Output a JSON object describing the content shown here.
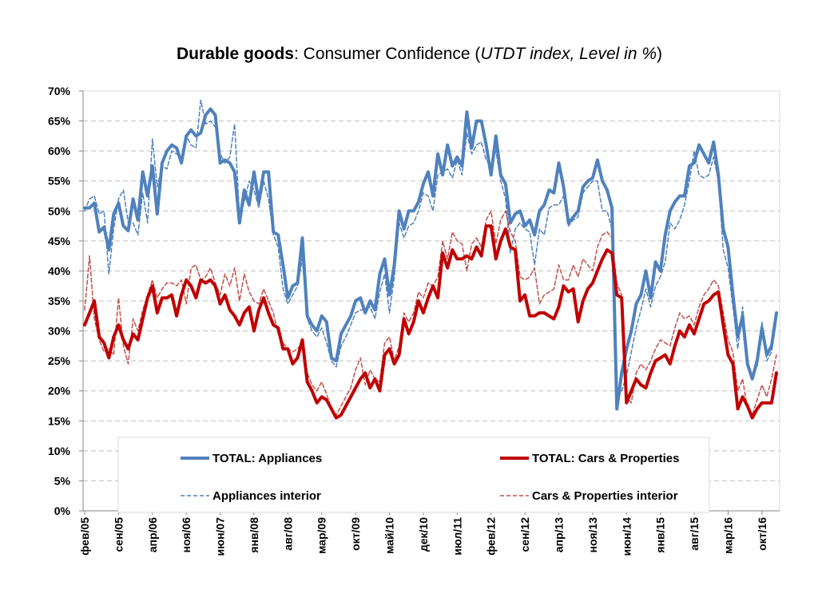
{
  "title": {
    "bold": "Durable goods",
    "sep": ": Consumer Confidence (",
    "italic": "UTDT index,  Level  in %",
    "close": ")"
  },
  "colors": {
    "appliances": "#4F81BD",
    "cars": "#C00000",
    "cars_interior": "#C0504D",
    "grid": "#BFBFBF"
  },
  "chart_data": {
    "type": "line",
    "title": "Durable goods: Consumer Confidence (UTDT index,  Level  in %)",
    "ylim": [
      0,
      70
    ],
    "yticks": [
      0,
      5,
      10,
      15,
      20,
      25,
      30,
      35,
      40,
      45,
      50,
      55,
      60,
      65,
      70
    ],
    "ytick_labels": [
      "0%",
      "5%",
      "10%",
      "15%",
      "20%",
      "25%",
      "30%",
      "35%",
      "40%",
      "45%",
      "50%",
      "55%",
      "60%",
      "65%",
      "70%"
    ],
    "x_start": "2005-02",
    "x_end": "2016-10",
    "xtick_labels": [
      "фев/05",
      "сен/05",
      "апр/06",
      "ноя/06",
      "июн/07",
      "янв/08",
      "авг/08",
      "мар/09",
      "окт/09",
      "май/10",
      "дек/10",
      "июл/11",
      "фев/12",
      "сен/12",
      "апр/13",
      "ноя/13",
      "июн/14",
      "янв/15",
      "авг/15",
      "мар/16",
      "окт/16"
    ],
    "grid": true,
    "legend_position": "bottom-inside",
    "series": [
      {
        "name": "TOTAL: Appliances",
        "style": "solid-thick",
        "values": [
          50.5,
          50.5,
          51.3,
          46.5,
          47.3,
          43.5,
          49.5,
          51.3,
          47.5,
          46.7,
          52.0,
          48.5,
          56.5,
          52.5,
          57.5,
          49.5,
          58.0,
          60.0,
          61.0,
          60.5,
          58.0,
          62.5,
          63.5,
          62.5,
          63.0,
          66.0,
          67.0,
          66.0,
          58.0,
          58.5,
          58.0,
          56.5,
          48.0,
          53.5,
          51.0,
          56.5,
          51.5,
          56.5,
          56.5,
          46.5,
          46.0,
          41.0,
          35.5,
          37.5,
          38.0,
          45.5,
          32.5,
          31.0,
          30.0,
          32.5,
          31.5,
          25.5,
          25.0,
          29.5,
          31.0,
          32.5,
          35.0,
          35.5,
          33.0,
          35.0,
          33.5,
          39.5,
          42.0,
          36.0,
          41.0,
          50.0,
          47.0,
          50.0,
          50.0,
          51.5,
          54.5,
          56.5,
          52.5,
          59.5,
          56.0,
          61.0,
          57.5,
          59.0,
          57.5,
          66.5,
          60.5,
          65.0,
          65.0,
          61.0,
          56.0,
          62.5,
          56.0,
          54.5,
          48.0,
          49.5,
          50.0,
          47.5,
          48.5,
          46.0,
          50.0,
          51.0,
          53.5,
          53.0,
          58.0,
          54.0,
          48.0,
          49.0,
          50.0,
          54.0,
          55.0,
          55.5,
          58.5,
          55.0,
          53.5,
          50.5,
          17.0,
          23.0,
          27.0,
          30.0,
          34.5,
          36.0,
          40.0,
          35.5,
          41.5,
          40.0,
          46.0,
          50.0,
          51.5,
          52.5,
          52.5,
          57.5,
          58.0,
          61.0,
          59.5,
          58.0,
          61.5,
          56.0,
          47.0,
          44.0,
          36.0,
          29.0,
          32.5,
          24.5,
          22.0,
          25.0,
          30.5,
          26.0,
          27.5,
          33.0
        ]
      },
      {
        "name": "TOTAL: Cars & Properties",
        "style": "solid-thick",
        "values": [
          31.0,
          33.0,
          35.0,
          29.0,
          28.0,
          25.5,
          29.0,
          31.0,
          28.5,
          27.0,
          29.5,
          28.5,
          32.0,
          35.5,
          37.5,
          33.0,
          35.5,
          35.5,
          36.0,
          32.5,
          36.0,
          38.5,
          37.5,
          35.5,
          38.5,
          38.0,
          38.5,
          37.5,
          34.5,
          36.0,
          33.5,
          32.5,
          31.0,
          33.0,
          34.0,
          30.0,
          33.5,
          35.5,
          33.0,
          31.0,
          30.5,
          27.0,
          27.0,
          24.5,
          25.5,
          28.5,
          21.5,
          20.0,
          18.0,
          19.0,
          18.5,
          17.0,
          15.5,
          16.0,
          17.5,
          19.0,
          20.5,
          22.0,
          23.0,
          20.5,
          22.0,
          20.0,
          26.0,
          27.0,
          24.5,
          26.0,
          32.0,
          29.5,
          31.5,
          35.0,
          33.0,
          35.5,
          37.5,
          35.5,
          43.0,
          40.5,
          43.5,
          42.0,
          42.0,
          42.5,
          42.0,
          44.0,
          42.5,
          47.5,
          47.5,
          42.0,
          45.0,
          47.0,
          44.0,
          43.5,
          35.0,
          36.0,
          32.5,
          32.5,
          33.0,
          33.0,
          32.5,
          32.0,
          34.0,
          37.5,
          36.5,
          37.0,
          31.5,
          35.0,
          37.0,
          38.0,
          40.0,
          42.0,
          43.5,
          43.0,
          36.0,
          35.5,
          18.0,
          20.0,
          22.0,
          21.0,
          20.5,
          23.0,
          25.0,
          25.5,
          26.0,
          24.5,
          27.5,
          30.0,
          29.0,
          31.0,
          29.5,
          32.0,
          34.5,
          35.0,
          36.0,
          36.5,
          31.0,
          26.0,
          24.5,
          17.0,
          19.0,
          17.5,
          15.5,
          17.0,
          18.0,
          18.0,
          18.0,
          23.0
        ]
      },
      {
        "name": "Appliances interior",
        "style": "dashed",
        "values": [
          50.0,
          52.0,
          52.5,
          49.5,
          50.0,
          39.5,
          47.0,
          52.0,
          53.5,
          48.0,
          48.0,
          46.0,
          53.0,
          48.0,
          62.0,
          54.0,
          57.5,
          57.0,
          60.0,
          59.5,
          59.0,
          62.5,
          61.0,
          60.5,
          68.5,
          64.5,
          65.0,
          64.0,
          59.5,
          58.0,
          59.0,
          64.5,
          49.0,
          51.5,
          55.0,
          53.5,
          50.5,
          55.0,
          52.0,
          46.0,
          44.0,
          37.0,
          34.5,
          36.0,
          37.5,
          42.0,
          32.0,
          30.0,
          29.0,
          30.5,
          28.0,
          25.0,
          24.0,
          27.5,
          29.0,
          31.0,
          33.0,
          33.5,
          33.5,
          34.0,
          32.0,
          36.5,
          39.5,
          33.0,
          39.0,
          48.0,
          45.5,
          47.5,
          48.0,
          50.0,
          53.0,
          52.5,
          50.0,
          56.0,
          56.5,
          57.0,
          55.5,
          58.5,
          56.0,
          63.0,
          59.5,
          61.0,
          61.5,
          58.5,
          57.5,
          60.0,
          55.0,
          52.0,
          43.0,
          47.0,
          48.0,
          47.0,
          46.5,
          41.0,
          47.0,
          46.0,
          50.5,
          51.0,
          51.0,
          52.5,
          47.5,
          48.5,
          49.0,
          53.0,
          54.0,
          55.0,
          55.0,
          50.0,
          50.0,
          47.0,
          18.5,
          20.0,
          22.5,
          26.5,
          30.5,
          33.5,
          37.0,
          34.0,
          37.5,
          39.0,
          41.5,
          48.0,
          47.0,
          48.5,
          51.0,
          55.0,
          60.0,
          56.0,
          55.5,
          56.0,
          59.0,
          55.0,
          43.5,
          40.5,
          34.0,
          27.0,
          34.0,
          25.0,
          22.5,
          24.0,
          31.5,
          25.0,
          26.5,
          32.0
        ]
      },
      {
        "name": "Cars & Properties interior",
        "style": "dashed",
        "values": [
          33.5,
          42.5,
          32.0,
          28.5,
          26.5,
          27.0,
          26.0,
          35.5,
          27.5,
          24.5,
          32.0,
          30.0,
          33.5,
          36.0,
          38.5,
          35.5,
          37.0,
          38.0,
          38.0,
          37.5,
          38.5,
          34.5,
          40.5,
          41.0,
          38.5,
          39.0,
          40.5,
          38.0,
          36.0,
          39.5,
          37.5,
          40.5,
          35.0,
          39.5,
          36.5,
          35.0,
          34.5,
          37.0,
          35.0,
          33.0,
          29.5,
          28.0,
          27.0,
          26.5,
          27.0,
          28.0,
          23.0,
          21.0,
          20.0,
          21.5,
          19.5,
          17.0,
          16.0,
          17.5,
          19.0,
          20.5,
          23.5,
          25.5,
          21.0,
          23.5,
          22.0,
          21.5,
          28.0,
          29.0,
          25.0,
          27.5,
          33.0,
          31.5,
          33.0,
          36.5,
          35.5,
          38.0,
          37.5,
          39.0,
          45.0,
          42.0,
          46.5,
          45.0,
          44.5,
          40.0,
          44.5,
          45.5,
          44.0,
          48.5,
          50.0,
          44.5,
          48.5,
          50.0,
          46.5,
          45.0,
          39.0,
          38.5,
          39.0,
          40.5,
          34.5,
          36.0,
          36.5,
          37.0,
          41.0,
          38.5,
          38.5,
          41.0,
          39.0,
          42.0,
          41.0,
          40.0,
          44.0,
          46.0,
          46.5,
          45.5,
          38.0,
          36.0,
          19.0,
          18.0,
          23.0,
          24.5,
          23.5,
          25.0,
          27.0,
          28.5,
          28.0,
          27.5,
          30.5,
          33.0,
          32.0,
          32.5,
          31.0,
          34.0,
          36.0,
          37.0,
          38.5,
          37.5,
          33.0,
          28.5,
          26.5,
          20.0,
          22.0,
          17.0,
          16.0,
          18.5,
          21.0,
          19.0,
          22.0,
          26.0
        ]
      }
    ]
  }
}
